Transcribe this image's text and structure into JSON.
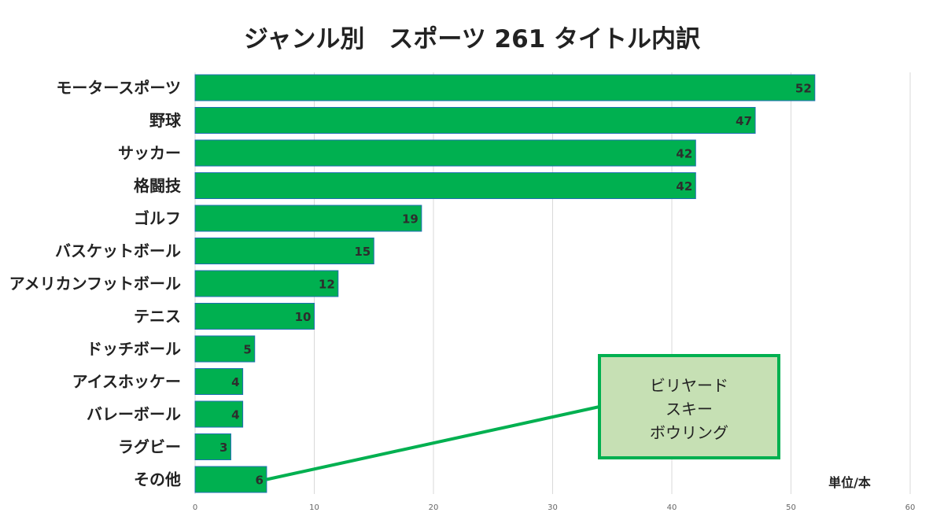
{
  "chart_data": {
    "type": "bar",
    "orientation": "horizontal",
    "title": "ジャンル別　スポーツ 261 タイトル内訳",
    "categories": [
      "モータースポーツ",
      "野球",
      "サッカー",
      "格闘技",
      "ゴルフ",
      "バスケットボール",
      "アメリカンフットボール",
      "テニス",
      "ドッチボール",
      "アイスホッケー",
      "バレーボール",
      "ラグビー",
      "その他"
    ],
    "values": [
      52,
      47,
      42,
      42,
      19,
      15,
      12,
      10,
      5,
      4,
      4,
      3,
      6
    ],
    "xlim": [
      0,
      60
    ],
    "xticks": [
      0,
      10,
      20,
      30,
      40,
      50,
      60
    ],
    "unit_label": "単位/本",
    "grid": true,
    "bar_color": "#00b050",
    "bar_edge_color": "#1f6fb4",
    "callout": {
      "target_category": "その他",
      "lines": [
        "ビリヤード",
        "スキー",
        "ボウリング"
      ],
      "fill_color": "#c6e0b4",
      "border_color": "#00b050"
    }
  }
}
